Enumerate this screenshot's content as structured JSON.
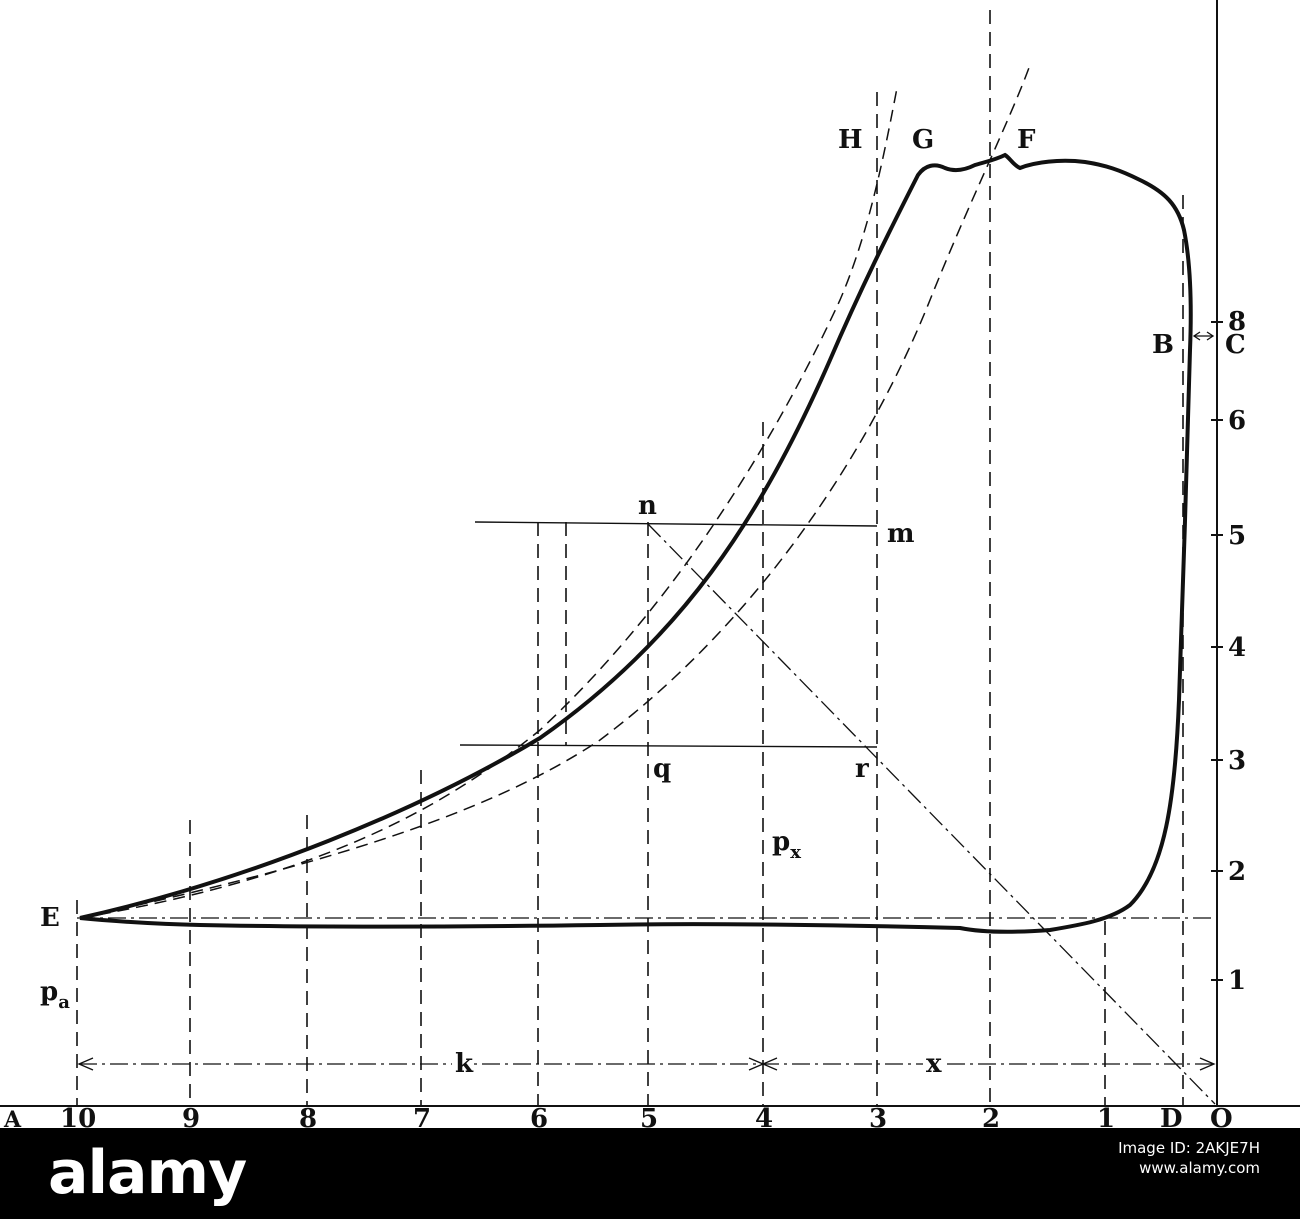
{
  "labels": {
    "H": "H",
    "G": "G",
    "F": "F",
    "B": "B",
    "C": "C",
    "E": "E",
    "D": "D",
    "O": "O",
    "A": "A",
    "n": "n",
    "m": "m",
    "q": "q",
    "r": "r",
    "px": "p",
    "px_sub": "x",
    "pa": "p",
    "pa_sub": "a",
    "k": "k",
    "x": "x"
  },
  "x_axis_ticks": [
    "10",
    "9",
    "8",
    "7",
    "6",
    "5",
    "4",
    "3",
    "2",
    "1"
  ],
  "y_axis_ticks": [
    "8",
    "6",
    "5",
    "4",
    "3",
    "2",
    "1"
  ],
  "watermark": {
    "logo": "alamy",
    "line1": "Image ID: 2AKJE7H",
    "line2": "www.alamy.com"
  },
  "colors": {
    "ink": "#111111",
    "background": "#ffffff",
    "banner": "#000000"
  }
}
